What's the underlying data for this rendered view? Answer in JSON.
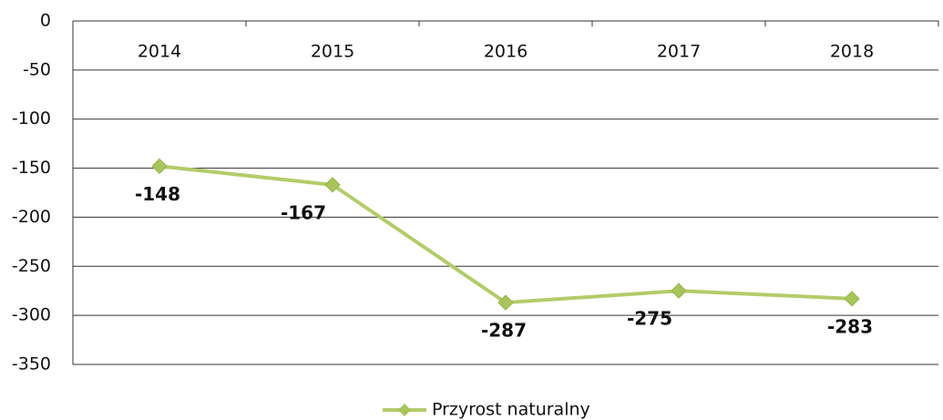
{
  "chart_data": {
    "type": "line",
    "categories": [
      "2014",
      "2015",
      "2016",
      "2017",
      "2018"
    ],
    "series": [
      {
        "name": "Przyrost naturalny",
        "color": "#b3cc6a",
        "values": [
          -148,
          -167,
          -287,
          -275,
          -283
        ]
      }
    ],
    "ylim": [
      -350,
      0
    ],
    "yticks": [
      0,
      -50,
      -100,
      -150,
      -200,
      -250,
      -300,
      -350
    ],
    "grid": true,
    "legend": "bottom"
  }
}
